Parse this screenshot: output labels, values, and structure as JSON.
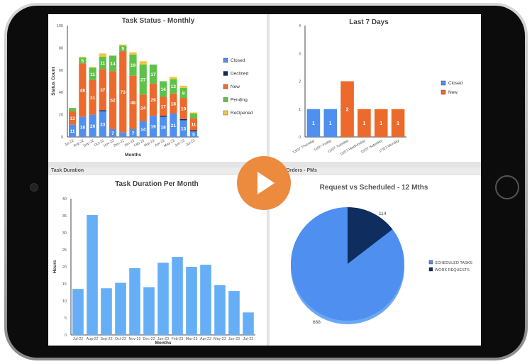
{
  "colors": {
    "closed": "#4f8ff0",
    "declined": "#0f2d5e",
    "new": "#ec6a2c",
    "pending": "#5ec24a",
    "reopened": "#f5c542",
    "duration": "#66aff7",
    "scheduled": "#4f8ff0",
    "work_requests": "#0f2d5e",
    "play": "#ec8a3e"
  },
  "panels": {
    "task_duration_header": "Task Duration",
    "work_orders_header": "Work Orders - PMs"
  },
  "chart_data": [
    {
      "type": "bar",
      "stacked": true,
      "title": "Task Status - Monthly",
      "xlabel": "Months",
      "ylabel": "Status Count",
      "ylim": [
        0,
        100
      ],
      "yticks": [
        0,
        20,
        40,
        60,
        80,
        100
      ],
      "legend": "right",
      "categories": [
        "Jul-22",
        "Aug-22",
        "Sep-22",
        "Oct-22",
        "Nov-22",
        "Dec-22",
        "Jan-23",
        "Feb-23",
        "Mar-23",
        "Apr-23",
        "May-23",
        "Jun-23",
        "Jul-23"
      ],
      "series": [
        {
          "name": "Closed",
          "values": [
            11,
            18,
            20,
            23,
            7,
            4,
            7,
            14,
            19,
            18,
            21,
            15,
            5
          ]
        },
        {
          "name": "Declined",
          "values": [
            0,
            0,
            0,
            1,
            0,
            0,
            0,
            0,
            0,
            1,
            0,
            1,
            1
          ]
        },
        {
          "name": "New",
          "values": [
            12,
            48,
            31,
            37,
            52,
            73,
            48,
            24,
            29,
            17,
            18,
            19,
            11
          ]
        },
        {
          "name": "Pending",
          "values": [
            3,
            5,
            11,
            11,
            14,
            5,
            19,
            27,
            17,
            14,
            13,
            9,
            4
          ]
        },
        {
          "name": "ReOpened",
          "values": [
            0,
            1,
            1,
            3,
            0,
            1,
            2,
            3,
            0,
            0,
            2,
            2,
            1
          ]
        }
      ]
    },
    {
      "type": "bar",
      "stacked": true,
      "title": "Last 7 Days",
      "xlabel": "",
      "ylabel": "",
      "ylim": [
        0,
        4
      ],
      "yticks": [
        0,
        1,
        2,
        3,
        4
      ],
      "legend": "right",
      "categories": [
        "13/07-Thursday",
        "14/07-Friday",
        "11/07-Tuesday",
        "12/07-Wednesday",
        "15/07-Saturday",
        "17/07-Monday"
      ],
      "series": [
        {
          "name": "Closed",
          "values": [
            1,
            1,
            0,
            0,
            0,
            0
          ]
        },
        {
          "name": "New",
          "values": [
            0,
            0,
            2,
            1,
            1,
            1
          ]
        }
      ]
    },
    {
      "type": "bar",
      "title": "Task Duration Per Month",
      "xlabel": "Months",
      "ylabel": "Hours",
      "ylim": [
        0,
        40
      ],
      "yticks": [
        0,
        5,
        10,
        15,
        20,
        25,
        30,
        35,
        40
      ],
      "categories": [
        "Jul-22",
        "Aug-22",
        "Sep-22",
        "Oct-22",
        "Nov-22",
        "Dec-22",
        "Jan-23",
        "Feb-23",
        "Mar-23",
        "Apr-23",
        "May-23",
        "Jun-23",
        "Jul-23"
      ],
      "values": [
        13.5,
        35.2,
        13.7,
        15.3,
        19.6,
        14.0,
        21.2,
        22.9,
        20.0,
        20.6,
        14.6,
        12.9,
        6.6
      ]
    },
    {
      "type": "pie",
      "title": "Request vs Scheduled - 12 Mths",
      "legend": "right",
      "slices": [
        {
          "name": "WORK REQUESTS",
          "value": 114
        },
        {
          "name": "SCHEDULED TASKS",
          "value": 668
        }
      ],
      "legend_order": [
        "SCHEDULED TASKS",
        "WORK REQUESTS"
      ]
    }
  ]
}
